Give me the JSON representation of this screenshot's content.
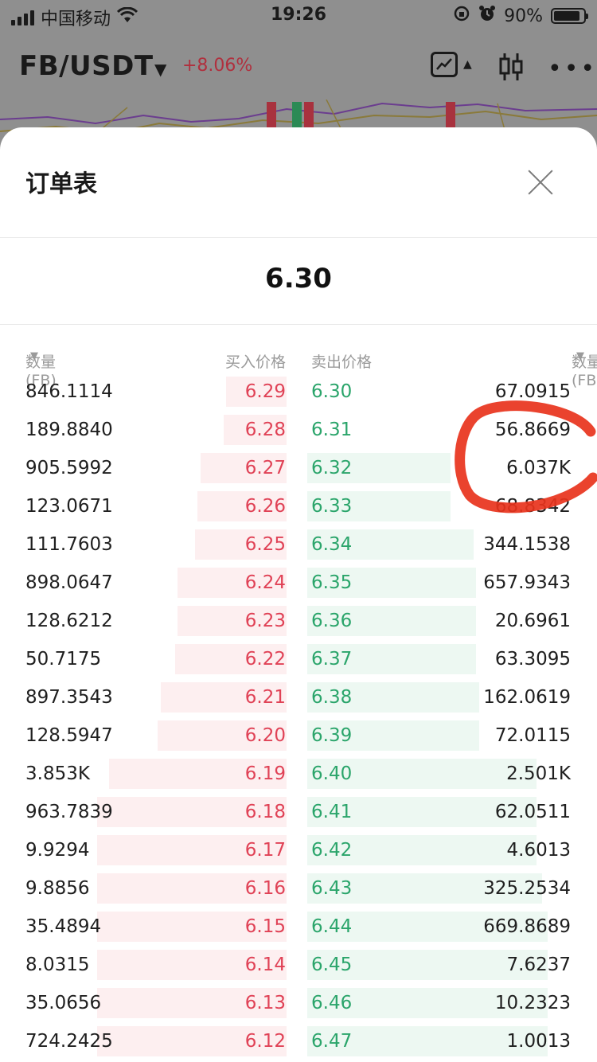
{
  "status_bar": {
    "carrier": "中国移动",
    "time": "19:26",
    "battery": "90%",
    "battery_level": 0.9
  },
  "header": {
    "pair": "FB/USDT",
    "change": "+8.06%"
  },
  "sheet": {
    "title": "订单表",
    "current_price": "6.30",
    "columns": {
      "bid_qty": "数量 (FB)",
      "bid_price": "买入价格",
      "ask_price": "卖出价格",
      "ask_qty": "数量 (FB)"
    }
  },
  "colors": {
    "bid": "#e04256",
    "ask": "#2ba56b",
    "annotation": "#e8331c"
  },
  "rows": [
    {
      "bid_qty": "846.1114",
      "bid_price": "6.29",
      "ask_price": "6.30",
      "ask_qty": "67.0915",
      "bid_depth": 0.21,
      "ask_depth": 0.0
    },
    {
      "bid_qty": "189.8840",
      "bid_price": "6.28",
      "ask_price": "6.31",
      "ask_qty": "56.8669",
      "bid_depth": 0.22,
      "ask_depth": 0.0
    },
    {
      "bid_qty": "905.5992",
      "bid_price": "6.27",
      "ask_price": "6.32",
      "ask_qty": "6.037K",
      "bid_depth": 0.3,
      "ask_depth": 0.5
    },
    {
      "bid_qty": "123.0671",
      "bid_price": "6.26",
      "ask_price": "6.33",
      "ask_qty": "68.8342",
      "bid_depth": 0.31,
      "ask_depth": 0.5
    },
    {
      "bid_qty": "111.7603",
      "bid_price": "6.25",
      "ask_price": "6.34",
      "ask_qty": "344.1538",
      "bid_depth": 0.32,
      "ask_depth": 0.58
    },
    {
      "bid_qty": "898.0647",
      "bid_price": "6.24",
      "ask_price": "6.35",
      "ask_qty": "657.9343",
      "bid_depth": 0.38,
      "ask_depth": 0.59
    },
    {
      "bid_qty": "128.6212",
      "bid_price": "6.23",
      "ask_price": "6.36",
      "ask_qty": "20.6961",
      "bid_depth": 0.38,
      "ask_depth": 0.59
    },
    {
      "bid_qty": "50.7175",
      "bid_price": "6.22",
      "ask_price": "6.37",
      "ask_qty": "63.3095",
      "bid_depth": 0.39,
      "ask_depth": 0.59
    },
    {
      "bid_qty": "897.3543",
      "bid_price": "6.21",
      "ask_price": "6.38",
      "ask_qty": "162.0619",
      "bid_depth": 0.44,
      "ask_depth": 0.6
    },
    {
      "bid_qty": "128.5947",
      "bid_price": "6.20",
      "ask_price": "6.39",
      "ask_qty": "72.0115",
      "bid_depth": 0.45,
      "ask_depth": 0.6
    },
    {
      "bid_qty": "3.853K",
      "bid_price": "6.19",
      "ask_price": "6.40",
      "ask_qty": "2.501K",
      "bid_depth": 0.62,
      "ask_depth": 0.8
    },
    {
      "bid_qty": "963.7839",
      "bid_price": "6.18",
      "ask_price": "6.41",
      "ask_qty": "62.0511",
      "bid_depth": 0.66,
      "ask_depth": 0.8
    },
    {
      "bid_qty": "9.9294",
      "bid_price": "6.17",
      "ask_price": "6.42",
      "ask_qty": "4.6013",
      "bid_depth": 0.66,
      "ask_depth": 0.8
    },
    {
      "bid_qty": "9.8856",
      "bid_price": "6.16",
      "ask_price": "6.43",
      "ask_qty": "325.2534",
      "bid_depth": 0.66,
      "ask_depth": 0.82
    },
    {
      "bid_qty": "35.4894",
      "bid_price": "6.15",
      "ask_price": "6.44",
      "ask_qty": "669.8689",
      "bid_depth": 0.66,
      "ask_depth": 0.84
    },
    {
      "bid_qty": "8.0315",
      "bid_price": "6.14",
      "ask_price": "6.45",
      "ask_qty": "7.6237",
      "bid_depth": 0.66,
      "ask_depth": 0.84
    },
    {
      "bid_qty": "35.0656",
      "bid_price": "6.13",
      "ask_price": "6.46",
      "ask_qty": "10.2323",
      "bid_depth": 0.66,
      "ask_depth": 0.84
    },
    {
      "bid_qty": "724.2425",
      "bid_price": "6.12",
      "ask_price": "6.47",
      "ask_qty": "1.0013",
      "bid_depth": 0.66,
      "ask_depth": 0.84
    }
  ]
}
